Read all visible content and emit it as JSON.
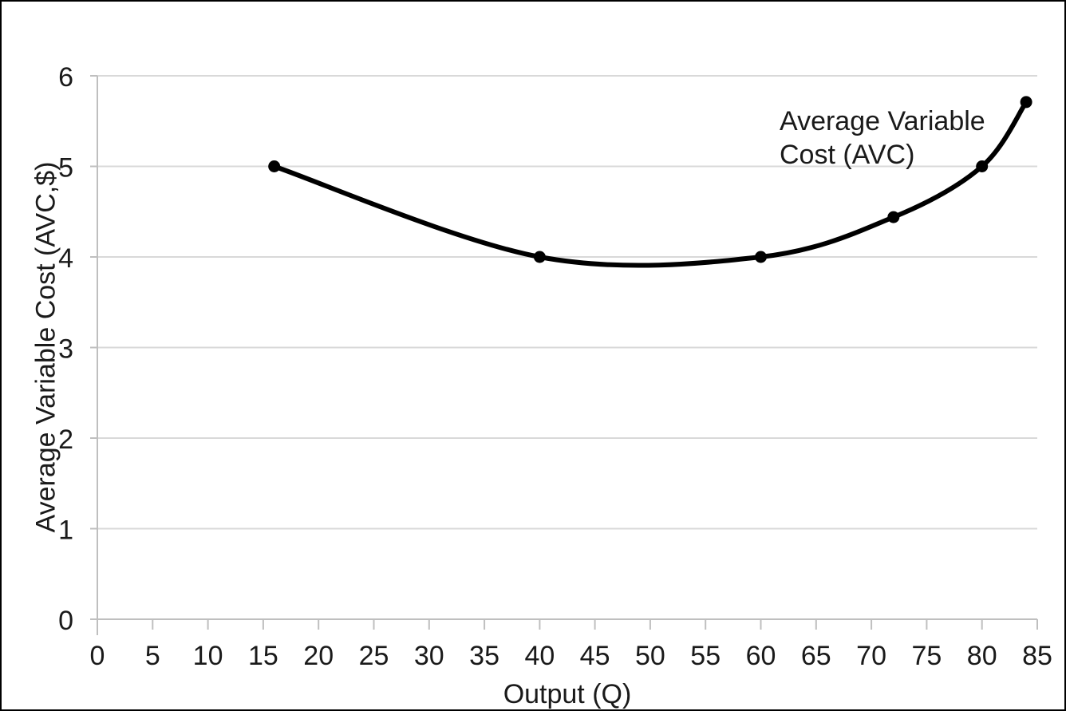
{
  "figure": {
    "background": "#ffffff",
    "border_color": "#000000"
  },
  "chart_data": {
    "type": "line",
    "title": "",
    "xlabel": "Output (Q)",
    "ylabel": "Average Variable Cost (AVC,$)",
    "x": [
      16,
      40,
      60,
      72,
      80,
      84
    ],
    "series": [
      {
        "name": "Average Variable Cost (AVC)",
        "values": [
          5,
          4,
          4,
          4.44,
          5,
          5.71
        ],
        "color": "#000000",
        "marker": "circle",
        "marker_radius": 7.5,
        "line_width": 6,
        "smooth": true
      }
    ],
    "xlim": [
      0,
      85
    ],
    "ylim": [
      0,
      6
    ],
    "x_ticks": [
      0,
      5,
      10,
      15,
      20,
      25,
      30,
      35,
      40,
      45,
      50,
      55,
      60,
      65,
      70,
      75,
      80,
      85
    ],
    "y_ticks": [
      0,
      1,
      2,
      3,
      4,
      5,
      6
    ],
    "grid": "horizontal",
    "legend_position": "none",
    "gridline_color": "#d9d9d9",
    "axis_color": "#bfbfbf",
    "text_color": "#1a1a1a",
    "annotation": {
      "lines": [
        "Average Variable",
        "Cost (AVC)"
      ]
    }
  }
}
